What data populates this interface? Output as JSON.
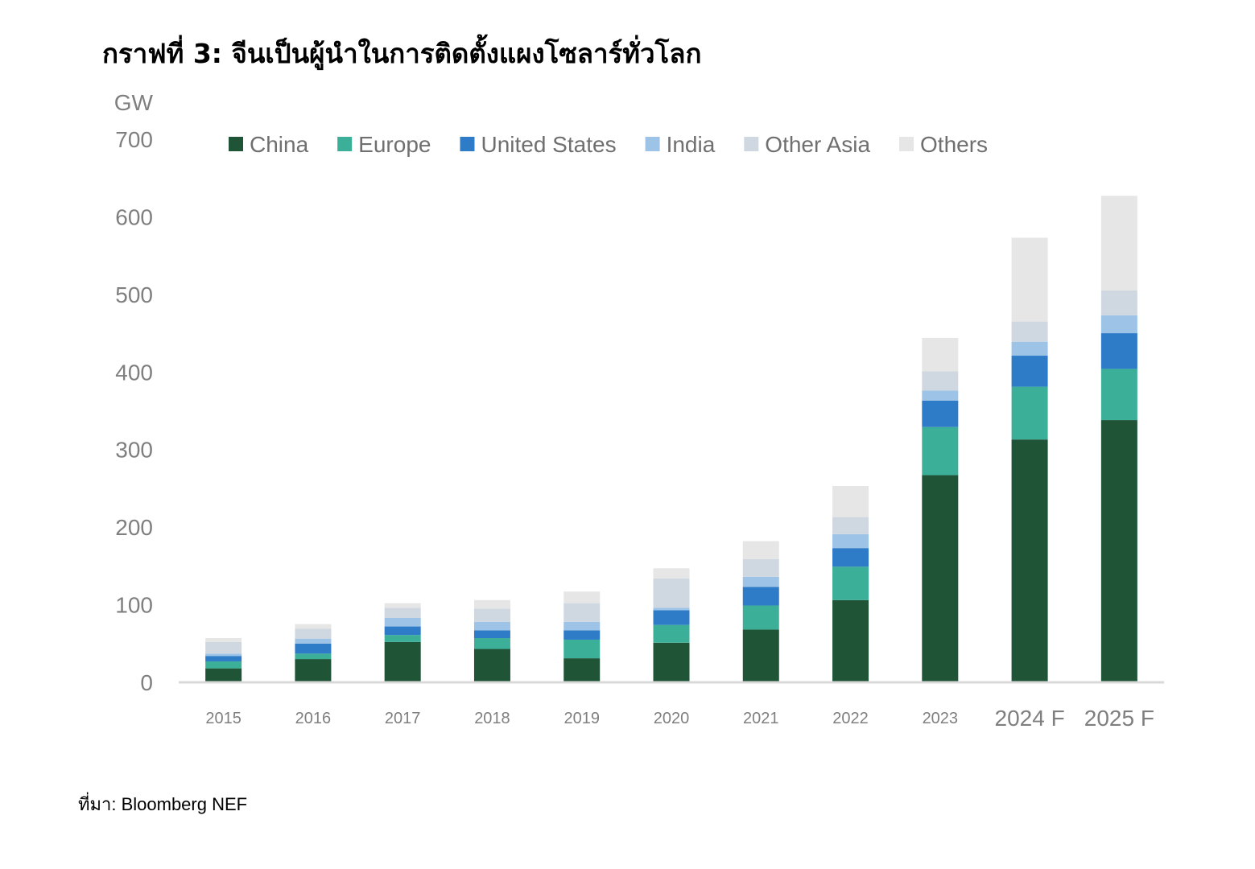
{
  "title": "กราฟที่ 3: จีนเป็นผู้นำในการติดตั้งแผงโซลาร์ทั่วโลก",
  "source": "ที่มา: Bloomberg NEF",
  "chart_data": {
    "type": "bar",
    "stacked": true,
    "y_unit_label": "GW",
    "ylim": [
      0,
      700
    ],
    "y_ticks": [
      0,
      100,
      200,
      300,
      400,
      500,
      600,
      700
    ],
    "grid": false,
    "legend_position": "top",
    "categories": [
      "2015",
      "2016",
      "2017",
      "2018",
      "2019",
      "2020",
      "2021",
      "2022",
      "2023",
      "2024 F",
      "2025 F"
    ],
    "series": [
      {
        "name": "China",
        "color": "#1f5437",
        "values": [
          18,
          30,
          52,
          43,
          31,
          51,
          68,
          106,
          267,
          313,
          338
        ]
      },
      {
        "name": "Europe",
        "color": "#3baf97",
        "values": [
          9,
          7,
          9,
          14,
          24,
          23,
          31,
          43,
          62,
          68,
          66
        ]
      },
      {
        "name": "United States",
        "color": "#2e7bc8",
        "values": [
          7,
          13,
          11,
          10,
          12,
          19,
          24,
          24,
          34,
          40,
          46
        ]
      },
      {
        "name": "India",
        "color": "#9dc3e6",
        "values": [
          3,
          6,
          11,
          11,
          11,
          3,
          13,
          18,
          13,
          18,
          23
        ]
      },
      {
        "name": "Other Asia",
        "color": "#cfd8e1",
        "values": [
          15,
          13,
          13,
          17,
          24,
          38,
          23,
          22,
          25,
          26,
          32
        ]
      },
      {
        "name": "Others",
        "color": "#e6e6e6",
        "values": [
          5,
          6,
          6,
          11,
          15,
          13,
          23,
          40,
          43,
          108,
          122
        ]
      }
    ]
  }
}
